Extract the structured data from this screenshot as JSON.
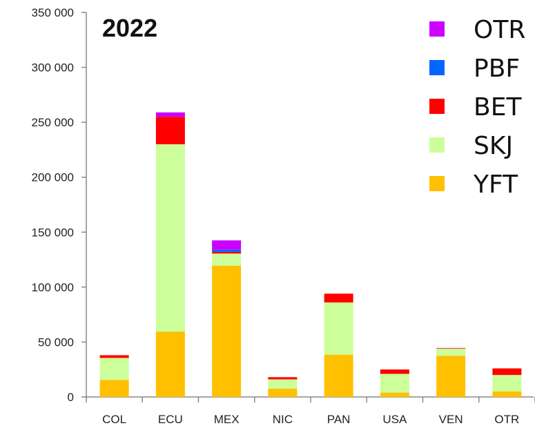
{
  "chart_data": {
    "type": "bar",
    "stacked": true,
    "title": "2022",
    "xlabel": "",
    "ylabel": "",
    "categories": [
      "COL",
      "ECU",
      "MEX",
      "NIC",
      "PAN",
      "USA",
      "VEN",
      "OTR"
    ],
    "ylim": [
      0,
      350000
    ],
    "yticks": [
      0,
      50000,
      100000,
      150000,
      200000,
      250000,
      300000,
      350000
    ],
    "ytick_labels": [
      "0",
      "50 000",
      "100 000",
      "150 000",
      "200 000",
      "250 000",
      "300 000",
      "350 000"
    ],
    "grid": false,
    "legend_position": "top-right",
    "series": [
      {
        "name": "YFT",
        "color": "#FFC000",
        "values": [
          15500,
          59500,
          119500,
          7500,
          38500,
          4000,
          37500,
          5000
        ]
      },
      {
        "name": "SKJ",
        "color": "#CCFF99",
        "values": [
          20000,
          170500,
          11000,
          8500,
          47500,
          17000,
          6500,
          15000
        ]
      },
      {
        "name": "BET",
        "color": "#FF0000",
        "values": [
          2500,
          25000,
          1500,
          2000,
          8000,
          4000,
          500,
          6000
        ]
      },
      {
        "name": "PBF",
        "color": "#0066FF",
        "values": [
          0,
          0,
          2000,
          0,
          0,
          0,
          0,
          0
        ]
      },
      {
        "name": "OTR",
        "color": "#CC00FF",
        "values": [
          0,
          4000,
          8500,
          0,
          0,
          0,
          0,
          0
        ]
      }
    ],
    "legend_order": [
      "OTR",
      "PBF",
      "BET",
      "SKJ",
      "YFT"
    ]
  }
}
